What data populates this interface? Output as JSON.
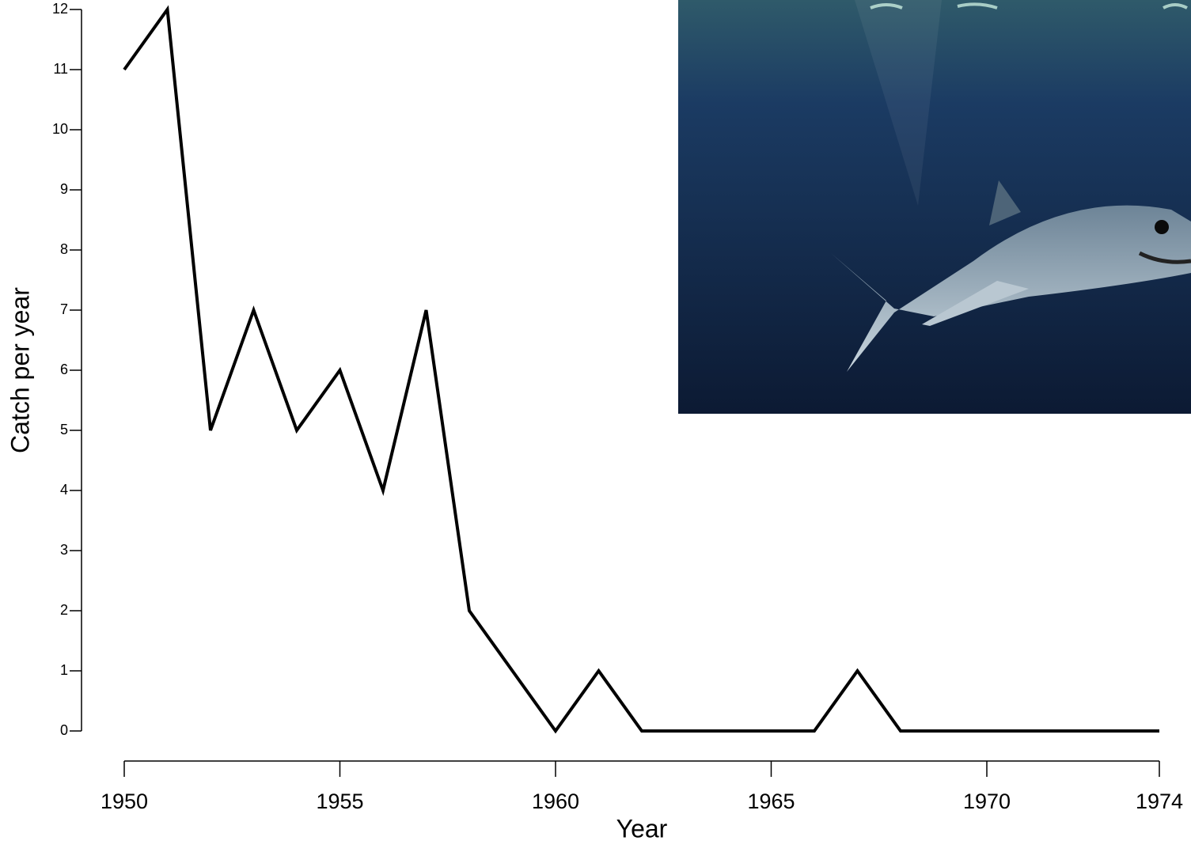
{
  "chart_data": {
    "type": "line",
    "x_label": "Year",
    "y_label": "Catch per year",
    "x": [
      1950,
      1951,
      1952,
      1953,
      1954,
      1955,
      1956,
      1957,
      1958,
      1959,
      1960,
      1961,
      1962,
      1963,
      1964,
      1965,
      1966,
      1967,
      1968,
      1969,
      1970,
      1971,
      1972,
      1973,
      1974
    ],
    "series": [
      {
        "color": "#000000",
        "values": [
          11,
          12,
          5,
          7,
          5,
          6,
          4,
          7,
          2,
          1,
          0,
          1,
          0,
          0,
          0,
          0,
          0,
          1,
          0,
          0,
          0,
          0,
          0,
          0,
          0
        ]
      }
    ],
    "xlim": [
      1950,
      1974
    ],
    "xticks": [
      1950,
      1955,
      1960,
      1965,
      1970,
      1974
    ],
    "ylim": [
      0,
      12
    ],
    "yticks": [
      0,
      1,
      2,
      3,
      4,
      5,
      6,
      7,
      8,
      9,
      10,
      11,
      12
    ]
  }
}
